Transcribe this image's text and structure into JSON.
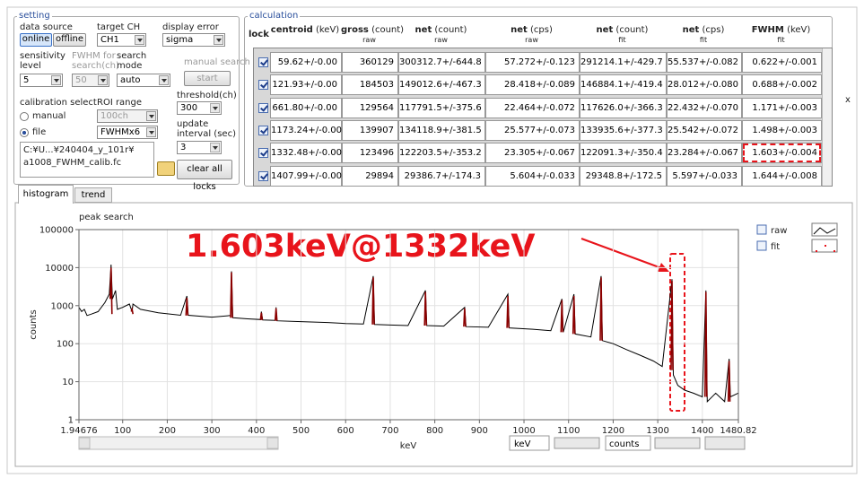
{
  "setting": {
    "legend": "setting",
    "data_source": {
      "label": "data source",
      "options": [
        "online",
        "offline"
      ]
    },
    "target_ch": {
      "label": "target CH",
      "value": "CH1"
    },
    "display_error": {
      "label": "display error",
      "value": "sigma"
    },
    "sensitivity": {
      "label": "sensitivity level",
      "value": "5"
    },
    "fwhm_search": {
      "label": "FWHM for search(ch)",
      "value": "50"
    },
    "search_mode": {
      "label": "search mode",
      "value": "auto"
    },
    "manual_search": {
      "label": "manual search",
      "button": "start"
    },
    "threshold": {
      "label": "threshold(ch)",
      "value": "300"
    },
    "calibration": {
      "label": "calibration select",
      "options": [
        "manual",
        "file"
      ]
    },
    "roi": {
      "label": "ROI range",
      "options": [
        "100ch",
        "FWHMx6"
      ]
    },
    "update_interval": {
      "label": "update interval (sec)",
      "value": "3"
    },
    "file_path": [
      "C:¥U...¥240404_y_101r¥",
      "a1008_FWHM_calib.fc"
    ],
    "clear_button": "clear all locks"
  },
  "calculation": {
    "legend": "calculation",
    "lock": "lock",
    "close": "x",
    "columns": [
      {
        "name": "centroid",
        "unit": "(keV)"
      },
      {
        "name": "gross",
        "unit": "(count)",
        "sub": "raw"
      },
      {
        "name": "net",
        "unit": "(count)",
        "sub": "raw"
      },
      {
        "name": "net",
        "unit": "(cps)",
        "sub": "raw"
      },
      {
        "name": "net",
        "unit": "(count)",
        "sub": "fit"
      },
      {
        "name": "net",
        "unit": "(cps)",
        "sub": "fit"
      },
      {
        "name": "FWHM",
        "unit": "(keV)",
        "sub": "fit"
      }
    ],
    "rows": [
      [
        "59.62+/-0.00",
        "360129",
        "300312.7+/-644.8",
        "57.272+/-0.123",
        "291214.1+/-429.7",
        "55.537+/-0.082",
        "0.622+/-0.001"
      ],
      [
        "121.93+/-0.00",
        "184503",
        "149012.6+/-467.3",
        "28.418+/-0.089",
        "146884.1+/-419.4",
        "28.012+/-0.080",
        "0.688+/-0.002"
      ],
      [
        "661.80+/-0.00",
        "129564",
        "117791.5+/-375.6",
        "22.464+/-0.072",
        "117626.0+/-366.3",
        "22.432+/-0.070",
        "1.171+/-0.003"
      ],
      [
        "1173.24+/-0.00",
        "139907",
        "134118.9+/-381.5",
        "25.577+/-0.073",
        "133935.6+/-377.3",
        "25.542+/-0.072",
        "1.498+/-0.003"
      ],
      [
        "1332.48+/-0.00",
        "123496",
        "122203.5+/-353.2",
        "23.305+/-0.067",
        "122091.3+/-350.4",
        "23.284+/-0.067",
        "1.603+/-0.004"
      ],
      [
        "1407.99+/-0.00",
        "29894",
        "29386.7+/-174.3",
        "5.604+/-0.033",
        "29348.8+/-172.5",
        "5.597+/-0.033",
        "1.644+/-0.008"
      ]
    ]
  },
  "tabs": [
    "histogram",
    "trend"
  ],
  "chart_data": {
    "type": "line",
    "title": "peak search",
    "x_label": "keV",
    "y_label": "counts",
    "annotation": "1.603keV@1332keV",
    "xlim": [
      1.94676,
      1480.82
    ],
    "xticks": [
      1.94676,
      100,
      200,
      300,
      400,
      500,
      600,
      700,
      800,
      900,
      1000,
      1100,
      1200,
      1300,
      1400,
      1480.82
    ],
    "ylim": [
      1,
      100000
    ],
    "yticks": [
      1,
      10,
      100,
      1000,
      10000,
      100000
    ],
    "yscale": "log",
    "grid": true,
    "legend_position": "top-right",
    "series": [
      {
        "name": "raw",
        "color": "#000000",
        "x": [
          2,
          8,
          14,
          20,
          30,
          45,
          60,
          70,
          74,
          77,
          84,
          88,
          100,
          115,
          121,
          123,
          140,
          180,
          230,
          244,
          247,
          300,
          342,
          344,
          347,
          380,
          410,
          411,
          414,
          443,
          444,
          446,
          500,
          560,
          600,
          640,
          662,
          665,
          700,
          740,
          779,
          782,
          820,
          867,
          870,
          920,
          964,
          967,
          1020,
          1060,
          1085,
          1088,
          1112,
          1115,
          1150,
          1173,
          1176,
          1200,
          1230,
          1260,
          1290,
          1310,
          1332,
          1335,
          1345,
          1360,
          1380,
          1400,
          1408,
          1411,
          1430,
          1450,
          1460,
          1463,
          1480
        ],
        "values": [
          900,
          700,
          800,
          550,
          600,
          700,
          1200,
          2000,
          12000,
          1500,
          2500,
          800,
          900,
          1100,
          700,
          1100,
          800,
          650,
          560,
          1800,
          560,
          500,
          550,
          8000,
          480,
          450,
          430,
          700,
          420,
          410,
          900,
          400,
          380,
          360,
          340,
          330,
          6000,
          320,
          310,
          300,
          2500,
          300,
          290,
          900,
          280,
          270,
          2000,
          260,
          240,
          220,
          1500,
          200,
          2000,
          180,
          150,
          6000,
          120,
          100,
          70,
          50,
          35,
          25,
          5000,
          15,
          8,
          6,
          5,
          4,
          2500,
          3,
          5,
          3,
          40,
          4,
          5
        ]
      },
      {
        "name": "fit",
        "color": "#8b0000",
        "x": [
          72,
          74,
          76,
          77,
          119,
          121,
          123,
          124,
          242,
          244,
          246,
          247,
          342,
          344,
          346,
          347,
          409,
          411,
          413,
          414,
          442,
          444,
          446,
          447,
          660,
          662,
          664,
          665,
          777,
          779,
          781,
          782,
          865,
          867,
          869,
          870,
          962,
          964,
          966,
          967,
          1083,
          1085,
          1087,
          1088,
          1110,
          1112,
          1114,
          1115,
          1171,
          1173,
          1175,
          1176,
          1330,
          1332,
          1334,
          1335,
          1406,
          1408,
          1410,
          1411,
          1458,
          1460,
          1462
        ],
        "values": [
          1500,
          10000,
          600,
          null,
          700,
          800,
          600,
          null,
          550,
          1600,
          550,
          null,
          480,
          7500,
          480,
          null,
          420,
          650,
          420,
          null,
          400,
          850,
          400,
          null,
          320,
          5500,
          320,
          null,
          300,
          2300,
          300,
          null,
          280,
          850,
          280,
          null,
          260,
          1800,
          260,
          null,
          200,
          1400,
          200,
          null,
          180,
          1800,
          180,
          null,
          120,
          5500,
          120,
          null,
          20,
          4500,
          20,
          null,
          4,
          2300,
          4,
          null,
          3,
          35,
          3
        ]
      }
    ]
  },
  "controls": {
    "x_unit": "keV",
    "y_unit": "counts"
  }
}
